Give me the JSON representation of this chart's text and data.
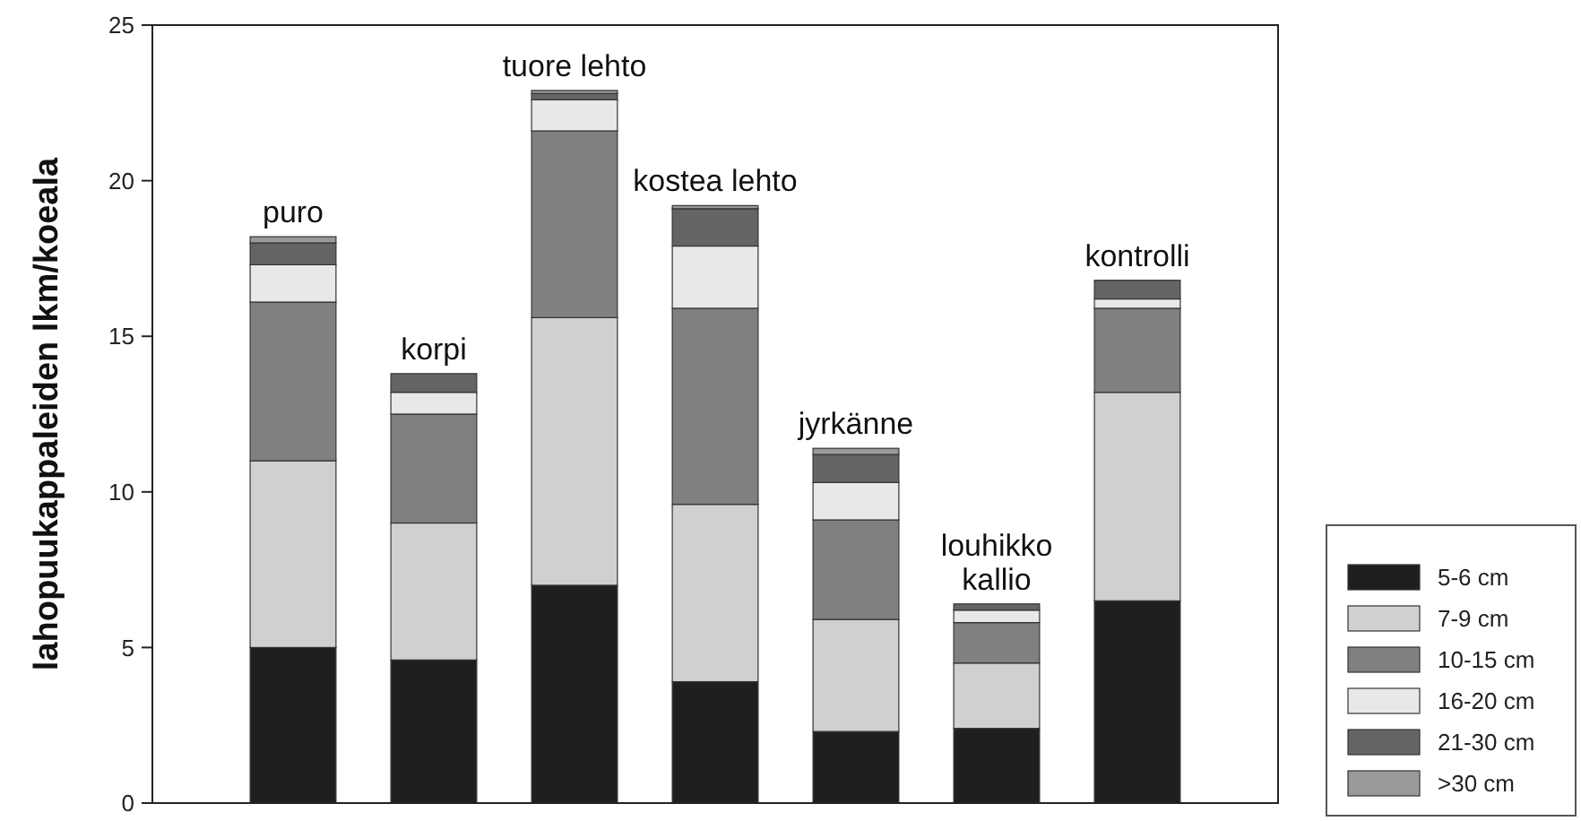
{
  "chart_data": {
    "type": "bar",
    "stacked": true,
    "ylabel": "lahopuukappaleiden lkm/koeala",
    "categories": [
      "puro",
      "korpi",
      "tuore lehto",
      "kostea lehto",
      "jyrkänne",
      "louhikko\nkallio",
      "kontrolli"
    ],
    "series": [
      {
        "name": "5-6 cm",
        "color": "#1e1f21",
        "values": [
          5.0,
          4.6,
          7.0,
          3.9,
          2.3,
          2.4,
          6.5
        ]
      },
      {
        "name": "7-9 cm",
        "color": "#d0d0d0",
        "values": [
          6.0,
          4.4,
          8.6,
          5.7,
          3.6,
          2.1,
          6.7
        ]
      },
      {
        "name": "10-15 cm",
        "color": "#808080",
        "values": [
          5.1,
          3.5,
          6.0,
          6.3,
          3.2,
          1.3,
          2.7
        ]
      },
      {
        "name": "16-20 cm",
        "color": "#e8e8e8",
        "values": [
          1.2,
          0.7,
          1.0,
          2.0,
          1.2,
          0.4,
          0.3
        ]
      },
      {
        "name": "21-30 cm",
        "color": "#646464",
        "values": [
          0.7,
          0.6,
          0.2,
          1.2,
          0.9,
          0.2,
          0.6
        ]
      },
      {
        "name": ">30 cm",
        "color": "#999999",
        "values": [
          0.2,
          0,
          0.1,
          0.1,
          0.2,
          0,
          0
        ]
      }
    ],
    "ylim": [
      0,
      25
    ],
    "yticks": [
      0,
      5,
      10,
      15,
      20,
      25
    ],
    "grid": false,
    "legend": "bottom right"
  }
}
